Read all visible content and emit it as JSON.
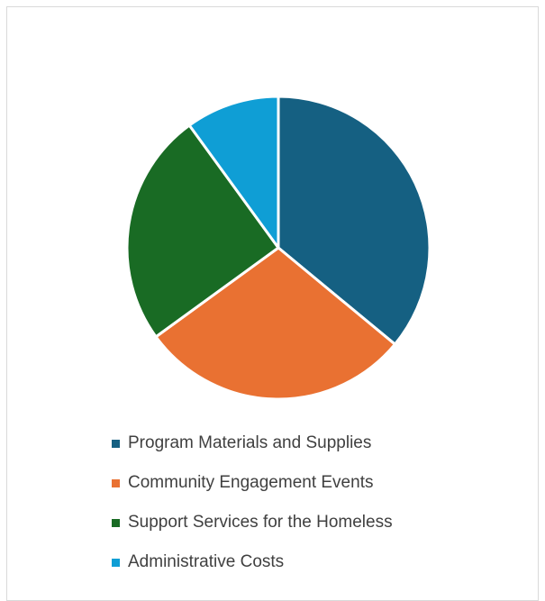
{
  "chart_data": {
    "type": "pie",
    "title": "",
    "series": [
      {
        "categories": [
          "Program Materials and Supplies",
          "Community Engagement Events",
          "Support Services for the Homeless",
          "Administrative Costs"
        ],
        "values": [
          36,
          29,
          25,
          10
        ],
        "colors": [
          "#156082",
          "#e97132",
          "#196b24",
          "#0f9ed5"
        ]
      }
    ],
    "legend_position": "bottom",
    "grid": false
  }
}
